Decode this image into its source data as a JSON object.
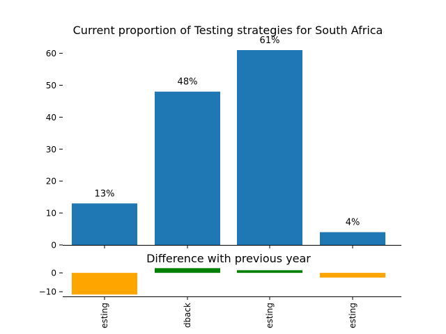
{
  "chart_data": [
    {
      "type": "bar",
      "title": "Current proportion of Testing strategies for South Africa",
      "categories": [
        "esting",
        "dback",
        "esting",
        "esting"
      ],
      "values": [
        13,
        48,
        61,
        4
      ],
      "data_labels": [
        "13%",
        "48%",
        "61%",
        "4%"
      ],
      "xlabel": "",
      "ylabel": "",
      "ylim": [
        0,
        61
      ],
      "yticks": [
        0,
        10,
        20,
        30,
        40,
        50,
        60
      ],
      "ytick_labels": [
        "0",
        "10",
        "20",
        "30",
        "40",
        "50",
        "60"
      ],
      "color": "#1f77b4",
      "grid": false
    },
    {
      "type": "bar",
      "title": "Difference with previous year",
      "categories": [
        "esting",
        "dback",
        "esting",
        "esting"
      ],
      "values": [
        -11.5,
        2.5,
        1.4,
        -2.5
      ],
      "colors": [
        "#ffa500",
        "#008000",
        "#008000",
        "#ffa500"
      ],
      "xlabel": "",
      "ylabel": "",
      "ylim": [
        -12.5,
        3
      ],
      "yticks": [
        0,
        -10
      ],
      "ytick_labels": [
        "0",
        "−10"
      ],
      "grid": false
    }
  ]
}
